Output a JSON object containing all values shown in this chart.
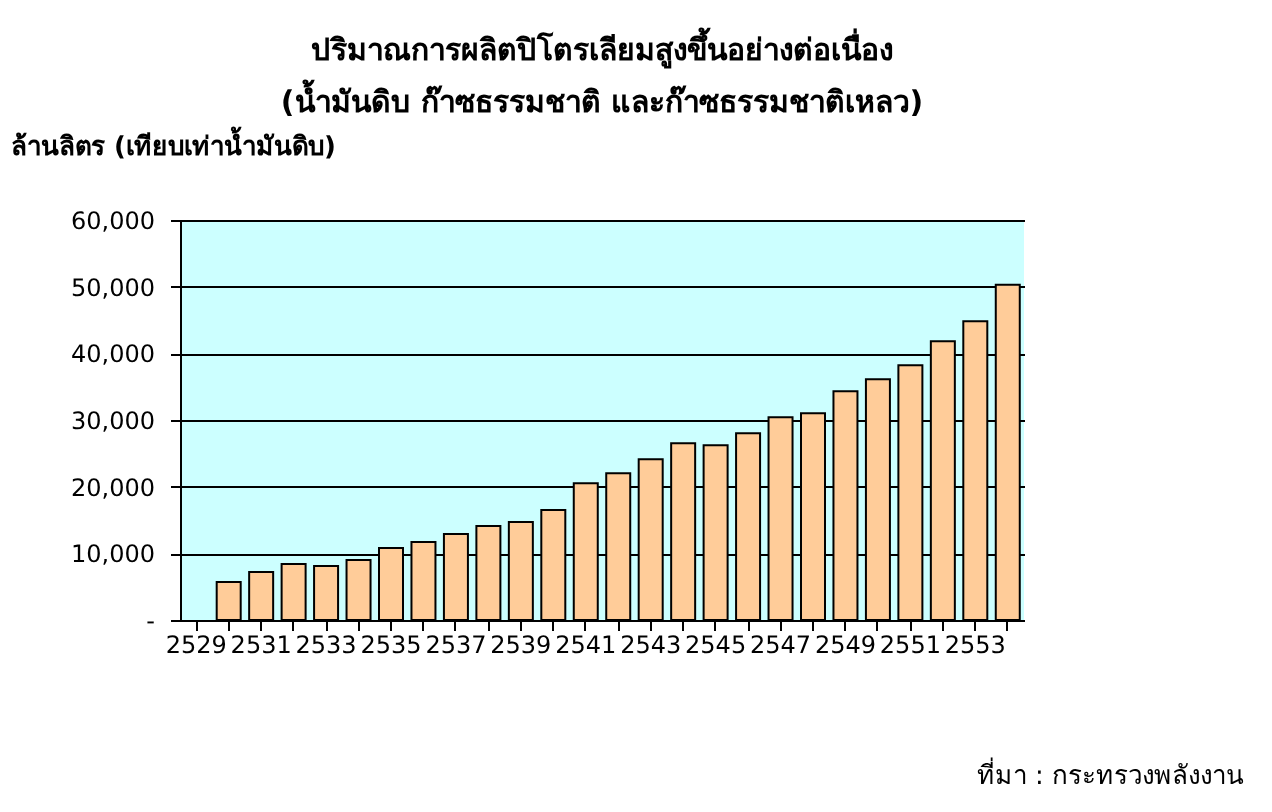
{
  "chart_data": {
    "type": "bar",
    "title": [
      "ปริมาณการผลิตปิโตรเลียมสูงขึ้นอย่างต่อเนื่อง",
      "(น้ำมันดิบ ก๊าซธรรมชาติ และก๊าซธรรมชาติเหลว)"
    ],
    "ylabel": "ล้านลิตร (เทียบเท่าน้ำมันดิบ)",
    "categories": [
      "2529",
      null,
      "2531",
      null,
      "2533",
      null,
      "2535",
      null,
      "2537",
      null,
      "2539",
      null,
      "2541",
      null,
      "2543",
      null,
      "2545",
      null,
      "2547",
      null,
      "2549",
      null,
      "2551",
      null,
      "2553",
      null
    ],
    "values": [
      null,
      5700,
      7200,
      8400,
      8100,
      9000,
      10800,
      11700,
      12900,
      14100,
      14700,
      16500,
      20500,
      22000,
      24100,
      26500,
      26200,
      28000,
      30400,
      31000,
      34300,
      36100,
      38200,
      41800,
      44800,
      50300
    ],
    "color": "#ffcc99",
    "ylim": [
      0,
      60000
    ],
    "yticks": [
      {
        "value": 0,
        "label": "-"
      },
      {
        "value": 10000,
        "label": "10,000"
      },
      {
        "value": 20000,
        "label": "20,000"
      },
      {
        "value": 30000,
        "label": "30,000"
      },
      {
        "value": 40000,
        "label": "40,000"
      },
      {
        "value": 50000,
        "label": "50,000"
      },
      {
        "value": 60000,
        "label": "60,000"
      }
    ],
    "grid": "y",
    "annotations": [
      "ที่มา : กระทรวงพลังงาน"
    ]
  }
}
